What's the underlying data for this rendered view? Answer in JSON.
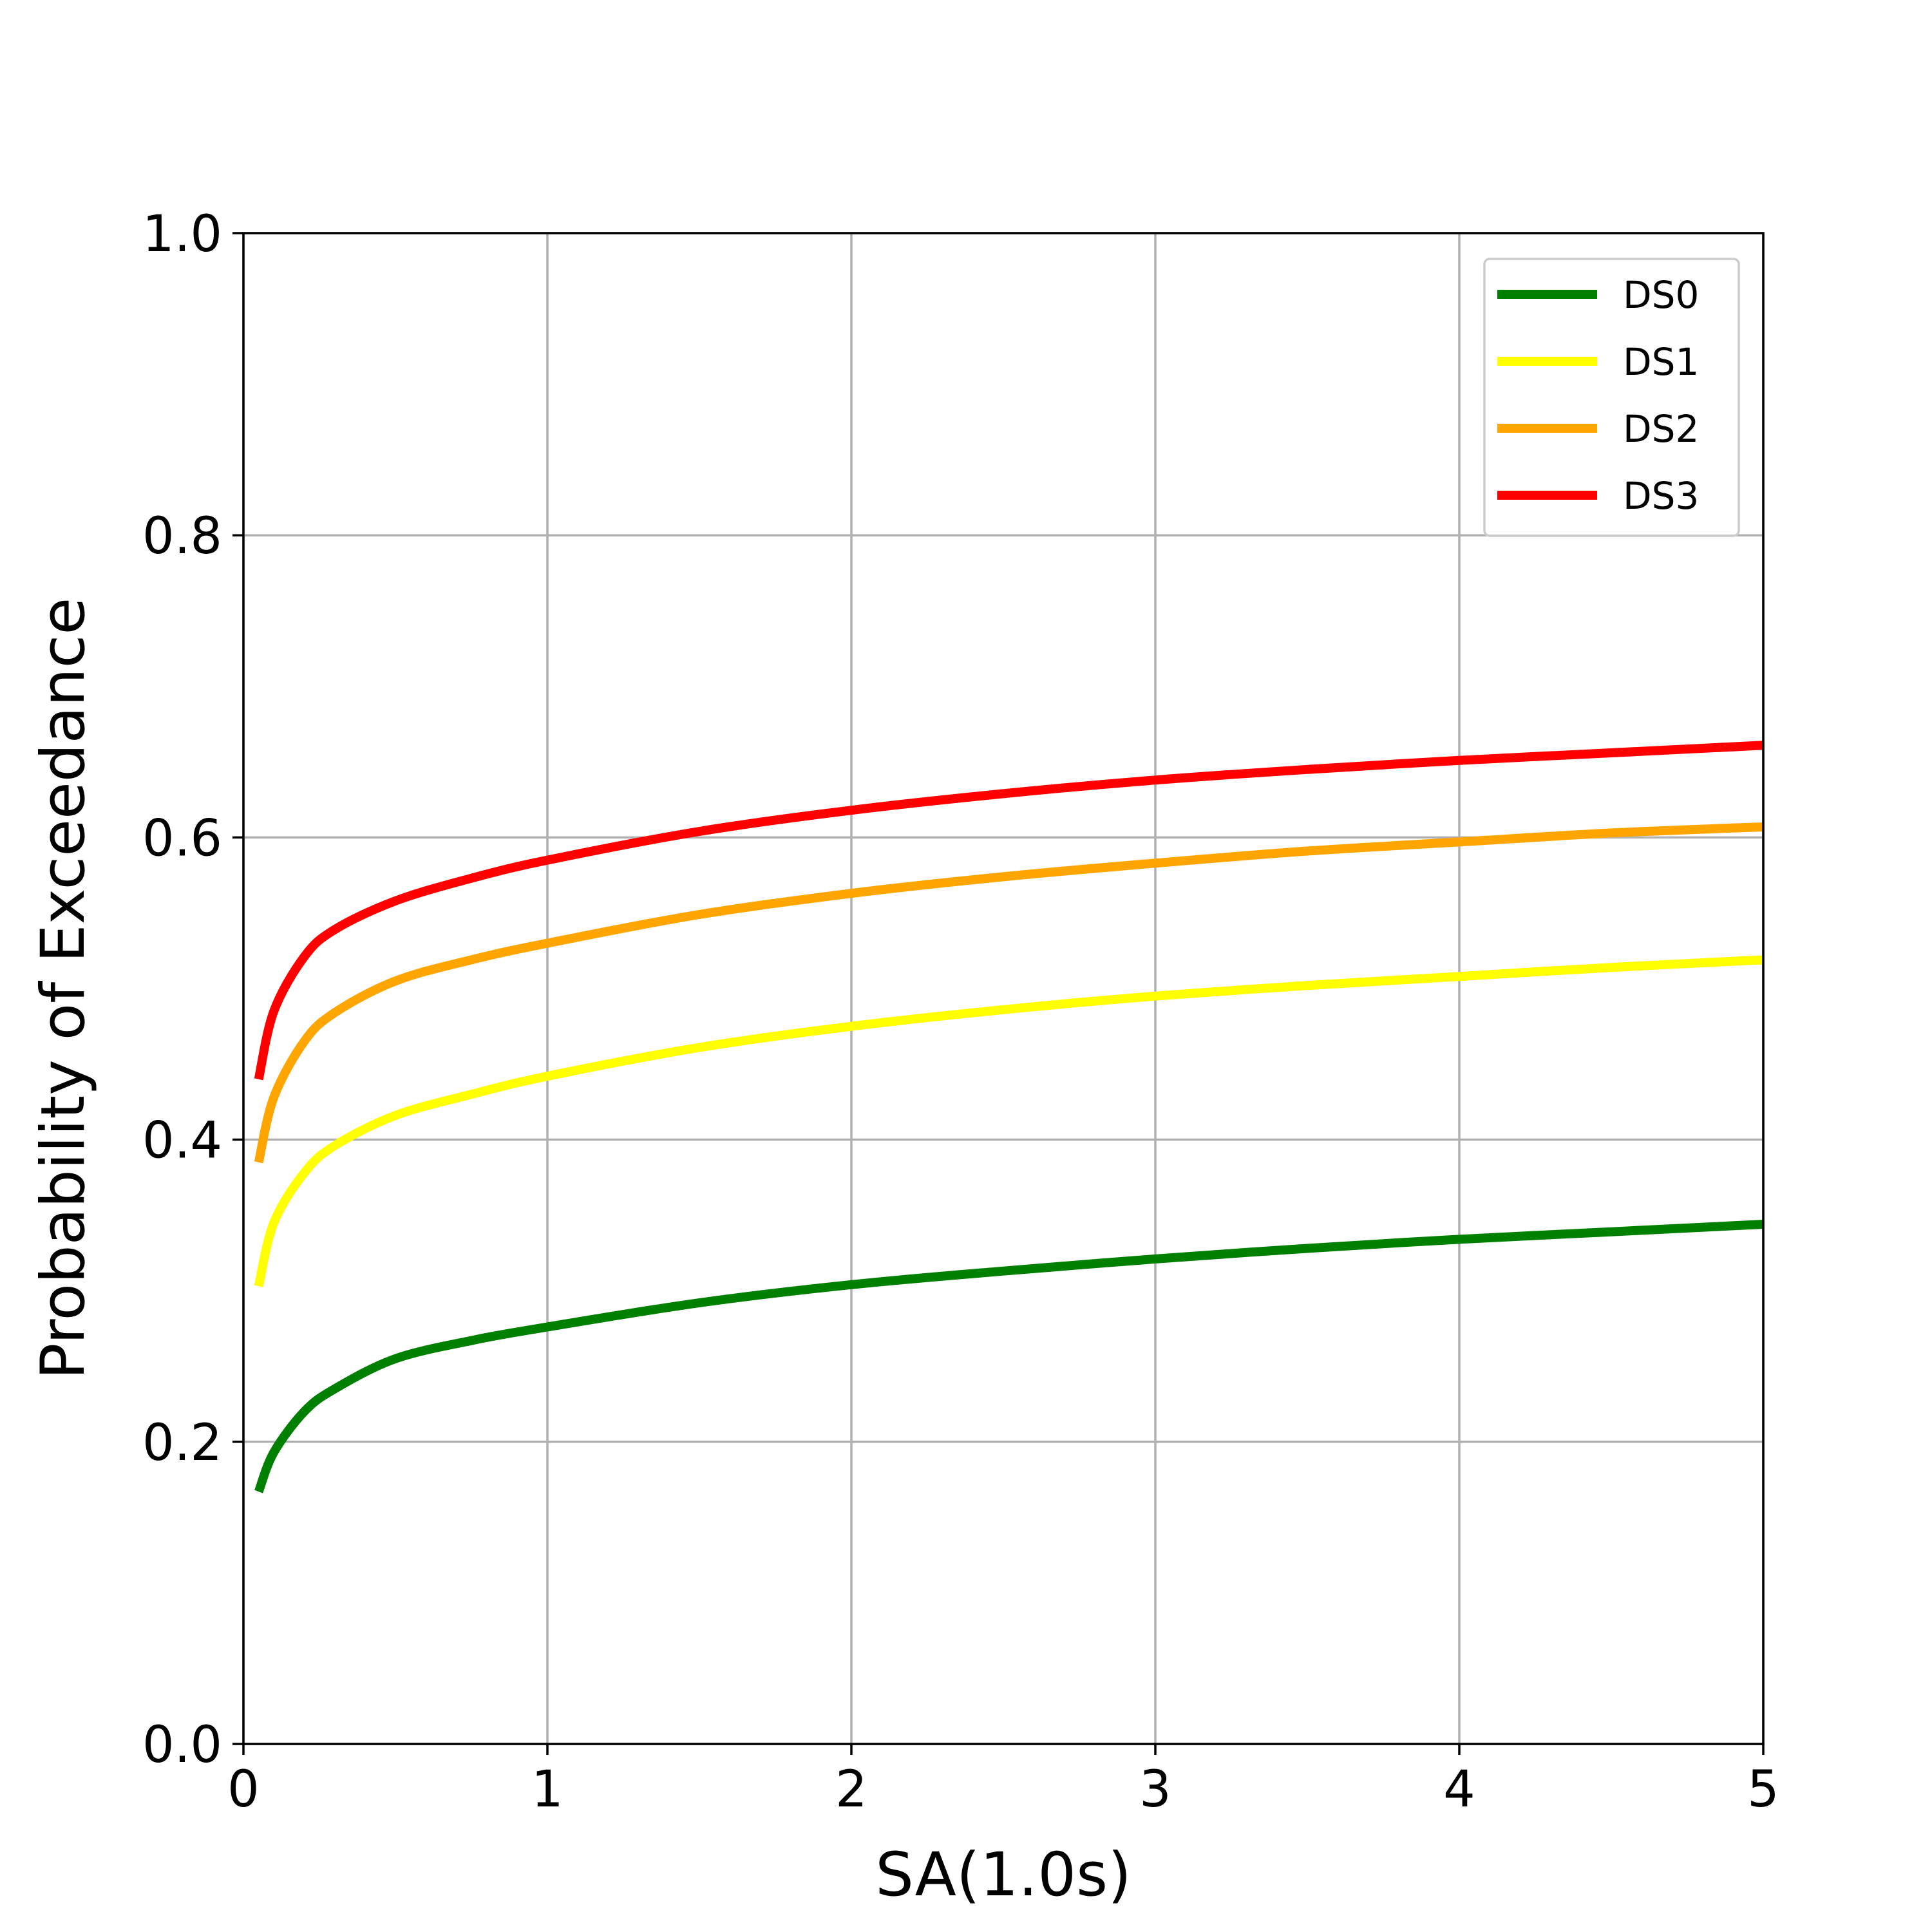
{
  "chart_data": {
    "type": "line",
    "title": "",
    "xlabel": "SA(1.0s)",
    "ylabel": "Probability of Exceedance",
    "xlim": [
      0,
      5
    ],
    "ylim": [
      0,
      1.0
    ],
    "x_ticks": [
      "0",
      "1",
      "2",
      "3",
      "4",
      "5"
    ],
    "y_ticks": [
      "0.0",
      "0.2",
      "0.4",
      "0.6",
      "0.8",
      "1.0"
    ],
    "grid": true,
    "legend_position": "top-right",
    "x": [
      0.05,
      0.1,
      0.2,
      0.3,
      0.5,
      0.75,
      1.0,
      1.5,
      2.0,
      2.5,
      3.0,
      3.5,
      4.0,
      4.5,
      5.0
    ],
    "series": [
      {
        "name": "DS0",
        "color": "#008000",
        "values": [
          0.167,
          0.193,
          0.22,
          0.235,
          0.255,
          0.267,
          0.276,
          0.292,
          0.304,
          0.313,
          0.321,
          0.328,
          0.334,
          0.339,
          0.344
        ]
      },
      {
        "name": "DS1",
        "color": "#ffff00",
        "values": [
          0.303,
          0.345,
          0.378,
          0.396,
          0.416,
          0.43,
          0.442,
          0.461,
          0.475,
          0.486,
          0.495,
          0.502,
          0.508,
          0.514,
          0.519
        ]
      },
      {
        "name": "DS2",
        "color": "#ffa500",
        "values": [
          0.385,
          0.428,
          0.465,
          0.484,
          0.505,
          0.519,
          0.53,
          0.549,
          0.563,
          0.574,
          0.583,
          0.591,
          0.597,
          0.603,
          0.607
        ]
      },
      {
        "name": "DS3",
        "color": "#ff0000",
        "values": [
          0.44,
          0.485,
          0.521,
          0.539,
          0.558,
          0.573,
          0.585,
          0.604,
          0.618,
          0.629,
          0.638,
          0.645,
          0.651,
          0.656,
          0.661
        ]
      }
    ]
  }
}
